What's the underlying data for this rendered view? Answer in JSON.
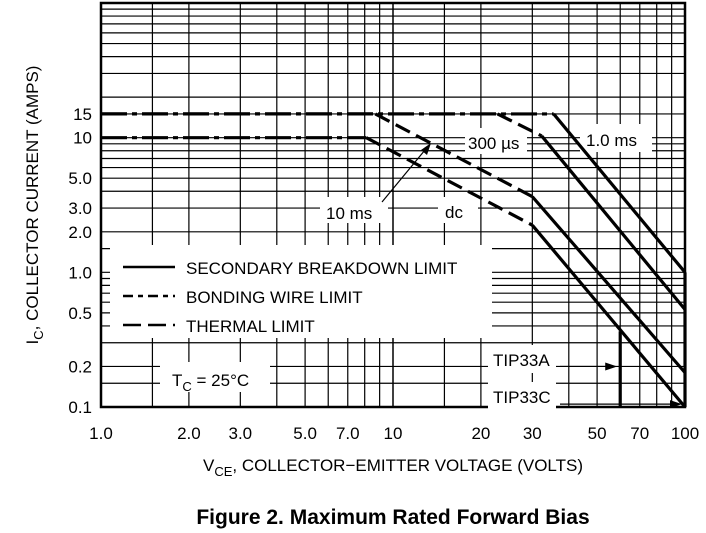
{
  "chart_data": {
    "type": "line",
    "title": "Figure 2. Maximum Rated Forward Bias",
    "xlabel": {
      "main": "V",
      "sub": "CE",
      "rest": ", COLLECTOR−EMITTER VOLTAGE (VOLTS)"
    },
    "ylabel": {
      "main": "I",
      "sub": "C",
      "rest": ", COLLECTOR CURRENT (AMPS)"
    },
    "xscale": "log",
    "yscale": "log",
    "xlim": [
      1,
      100
    ],
    "ylim": [
      0.1,
      100
    ],
    "xticks": [
      {
        "v": 1,
        "l": "1.0"
      },
      {
        "v": 2,
        "l": "2.0"
      },
      {
        "v": 3,
        "l": "3.0"
      },
      {
        "v": 5,
        "l": "5.0"
      },
      {
        "v": 7,
        "l": "7.0"
      },
      {
        "v": 10,
        "l": "10"
      },
      {
        "v": 20,
        "l": "20"
      },
      {
        "v": 30,
        "l": "30"
      },
      {
        "v": 50,
        "l": "50"
      },
      {
        "v": 70,
        "l": "70"
      },
      {
        "v": 100,
        "l": "100"
      }
    ],
    "yticks": [
      {
        "v": 15,
        "l": "15"
      },
      {
        "v": 10,
        "l": "10"
      },
      {
        "v": 5,
        "l": "5.0"
      },
      {
        "v": 3,
        "l": "3.0"
      },
      {
        "v": 2,
        "l": "2.0"
      },
      {
        "v": 1,
        "l": "1.0"
      },
      {
        "v": 0.5,
        "l": "0.5"
      },
      {
        "v": 0.2,
        "l": "0.2"
      },
      {
        "v": 0.1,
        "l": "0.1"
      }
    ],
    "grid": true,
    "series": [
      {
        "name": "300 µs",
        "segments": [
          {
            "style": "bonding",
            "points": [
              [
                1,
                15
              ],
              [
                35.5,
                15
              ]
            ]
          },
          {
            "style": "secondary",
            "points": [
              [
                35.5,
                15
              ],
              [
                100,
                1.0
              ]
            ]
          }
        ]
      },
      {
        "name": "1.0 ms",
        "segments": [
          {
            "style": "bonding",
            "points": [
              [
                1,
                15
              ],
              [
                22.8,
                15
              ]
            ]
          },
          {
            "style": "thermal",
            "points": [
              [
                22.8,
                15
              ],
              [
                32.3,
                10.3
              ]
            ]
          },
          {
            "style": "secondary",
            "points": [
              [
                32.3,
                10.3
              ],
              [
                100,
                0.53
              ]
            ]
          }
        ]
      },
      {
        "name": "10 ms",
        "segments": [
          {
            "style": "bonding",
            "points": [
              [
                1,
                15
              ],
              [
                8.7,
                15
              ]
            ]
          },
          {
            "style": "thermal",
            "points": [
              [
                8.7,
                15
              ],
              [
                30,
                3.65
              ]
            ]
          },
          {
            "style": "secondary",
            "points": [
              [
                30,
                3.65
              ],
              [
                100,
                0.18
              ]
            ]
          }
        ]
      },
      {
        "name": "dc",
        "segments": [
          {
            "style": "bonding",
            "points": [
              [
                1,
                10
              ],
              [
                8.1,
                10
              ]
            ]
          },
          {
            "style": "thermal",
            "points": [
              [
                8.1,
                10
              ],
              [
                30,
                2.24
              ]
            ]
          },
          {
            "style": "secondary",
            "points": [
              [
                30,
                2.24
              ],
              [
                100,
                0.1
              ]
            ]
          }
        ]
      }
    ],
    "limits": [
      {
        "name": "TIP33A",
        "v": 60,
        "top": 0.365,
        "arrow_i": 0.2
      },
      {
        "name": "TIP33C",
        "v": 100,
        "top": 1.0,
        "arrow_i": 0.105
      }
    ],
    "legend": {
      "placement": "lower-left",
      "entries": [
        {
          "style": "secondary",
          "label": "SECONDARY BREAKDOWN LIMIT"
        },
        {
          "style": "bonding",
          "label": "BONDING WIRE LIMIT"
        },
        {
          "style": "thermal",
          "label": "THERMAL LIMIT"
        }
      ]
    },
    "annotations": {
      "tc_main": "T",
      "tc_sub": "C",
      "tc_rest": " = 25°C"
    }
  }
}
